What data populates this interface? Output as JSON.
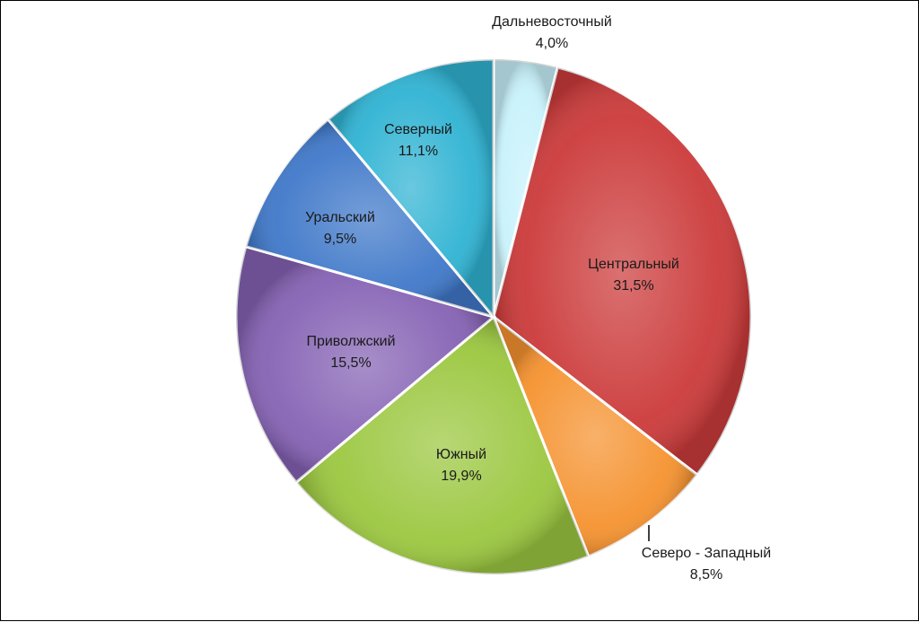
{
  "chart_data": {
    "type": "pie",
    "title": "",
    "legend": "none",
    "slices": [
      {
        "label": "Дальневосточный",
        "value_label": "4,0%",
        "value": 4.0,
        "color": "#c8f2fb"
      },
      {
        "label": "Центральный",
        "value_label": "31,5%",
        "value": 31.5,
        "color": "#cc3a3a"
      },
      {
        "label": "Северо - Западный",
        "value_label": "8,5%",
        "value": 8.5,
        "color": "#f5922f"
      },
      {
        "label": "Южный",
        "value_label": "19,9%",
        "value": 19.9,
        "color": "#9bc73f"
      },
      {
        "label": "Приволжский",
        "value_label": "15,5%",
        "value": 15.5,
        "color": "#8562b4"
      },
      {
        "label": "Уральский",
        "value_label": "9,5%",
        "value": 9.5,
        "color": "#3f78c9"
      },
      {
        "label": "Северный",
        "value_label": "11,1%",
        "value": 11.1,
        "color": "#2fb3d3"
      }
    ]
  }
}
